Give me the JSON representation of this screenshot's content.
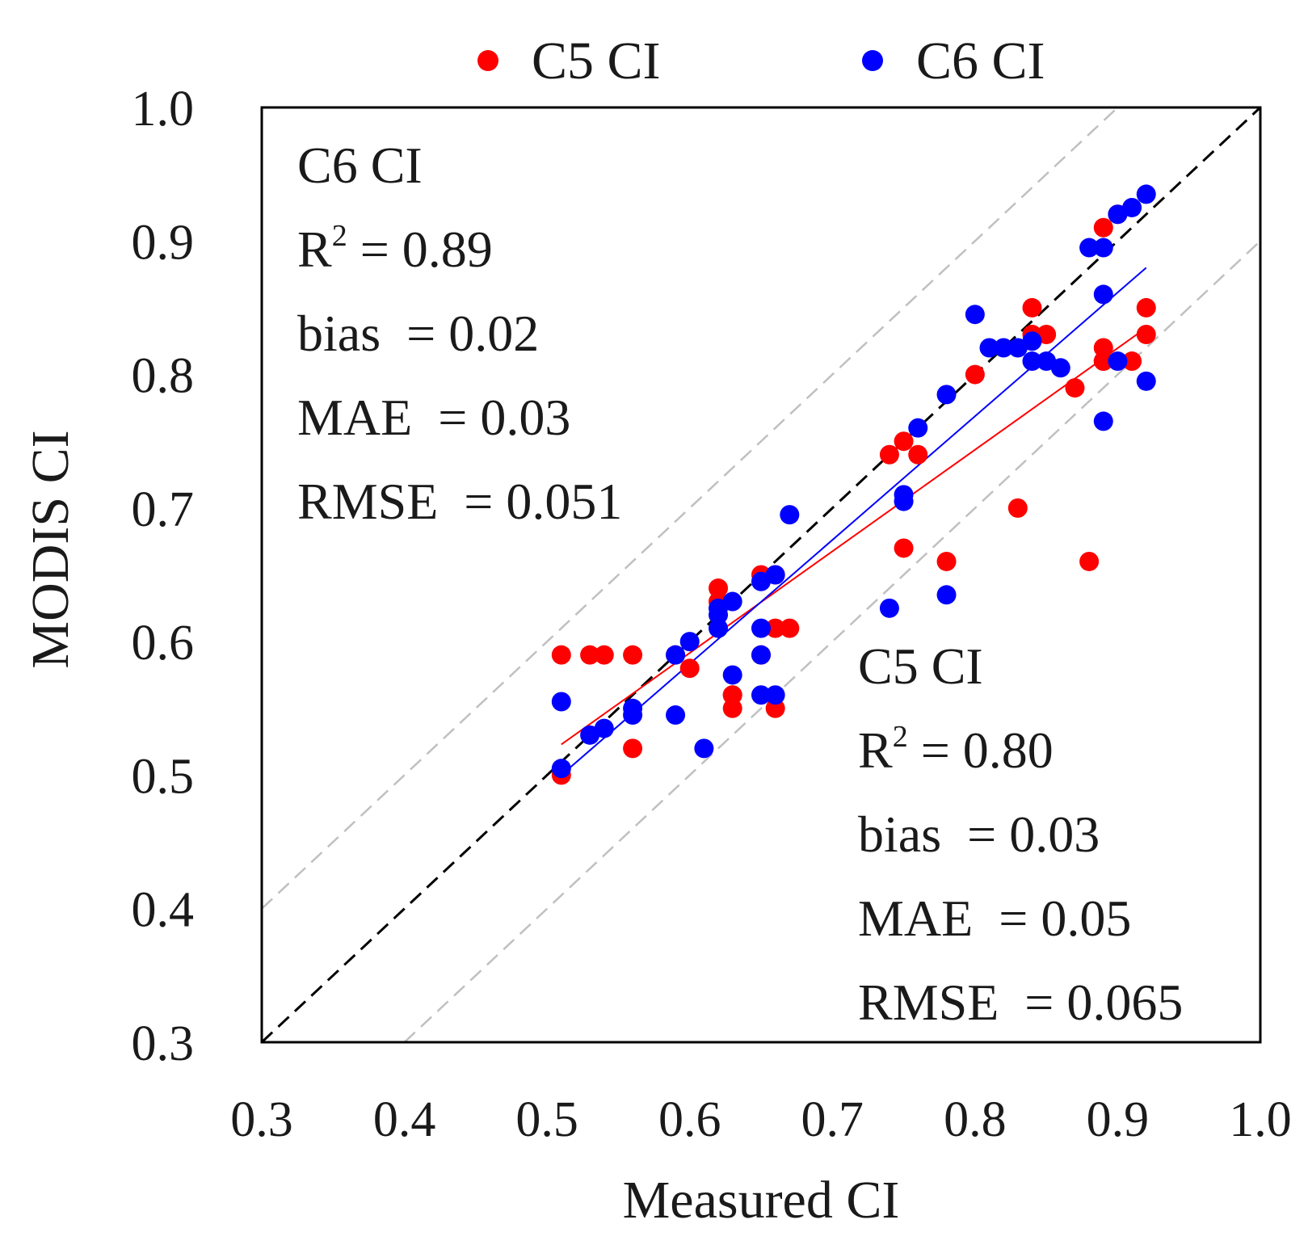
{
  "chart_data": {
    "type": "scatter",
    "xlabel": "Measured CI",
    "ylabel": "MODIS CI",
    "xlim": [
      0.3,
      1.0
    ],
    "ylim": [
      0.3,
      1.0
    ],
    "xticks": [
      "0.3",
      "0.4",
      "0.5",
      "0.6",
      "0.7",
      "0.8",
      "0.9",
      "1.0"
    ],
    "yticks": [
      "0.3",
      "0.4",
      "0.5",
      "0.6",
      "0.7",
      "0.8",
      "0.9",
      "1.0"
    ],
    "legend": [
      "C5 CI",
      "C6 CI"
    ],
    "colors": {
      "C5 CI": "#ff0000",
      "C6 CI": "#0000ff",
      "one_to_one": "#000000",
      "bounds": "#c0c0c0"
    },
    "reference_lines": {
      "one_to_one": [
        [
          0.3,
          0.3
        ],
        [
          1.0,
          1.0
        ]
      ],
      "upper_bound": [
        [
          0.3,
          0.4
        ],
        [
          0.9,
          1.0
        ]
      ],
      "lower_bound": [
        [
          0.4,
          0.3
        ],
        [
          1.0,
          0.9
        ]
      ]
    },
    "series": [
      {
        "name": "C5 CI",
        "fit": [
          [
            0.51,
            0.523
          ],
          [
            0.92,
            0.835
          ]
        ],
        "x": [
          0.51,
          0.51,
          0.53,
          0.54,
          0.56,
          0.56,
          0.59,
          0.6,
          0.62,
          0.62,
          0.63,
          0.63,
          0.63,
          0.65,
          0.65,
          0.66,
          0.66,
          0.66,
          0.67,
          0.74,
          0.75,
          0.75,
          0.76,
          0.78,
          0.8,
          0.83,
          0.84,
          0.84,
          0.85,
          0.87,
          0.88,
          0.89,
          0.89,
          0.89,
          0.89,
          0.9,
          0.91,
          0.92,
          0.92
        ],
        "y": [
          0.59,
          0.5,
          0.59,
          0.59,
          0.59,
          0.52,
          0.59,
          0.58,
          0.63,
          0.64,
          0.56,
          0.56,
          0.55,
          0.65,
          0.59,
          0.61,
          0.55,
          0.65,
          0.61,
          0.74,
          0.75,
          0.67,
          0.74,
          0.66,
          0.8,
          0.7,
          0.85,
          0.83,
          0.83,
          0.79,
          0.66,
          0.82,
          0.81,
          0.81,
          0.91,
          0.92,
          0.81,
          0.83,
          0.85
        ]
      },
      {
        "name": "C6 CI",
        "fit": [
          [
            0.51,
            0.5
          ],
          [
            0.92,
            0.88
          ]
        ],
        "x": [
          0.51,
          0.51,
          0.53,
          0.54,
          0.56,
          0.56,
          0.59,
          0.59,
          0.6,
          0.61,
          0.62,
          0.62,
          0.62,
          0.63,
          0.63,
          0.65,
          0.65,
          0.65,
          0.65,
          0.66,
          0.66,
          0.67,
          0.74,
          0.75,
          0.75,
          0.76,
          0.78,
          0.78,
          0.8,
          0.81,
          0.82,
          0.83,
          0.84,
          0.84,
          0.85,
          0.86,
          0.88,
          0.89,
          0.89,
          0.89,
          0.9,
          0.9,
          0.91,
          0.92,
          0.92
        ],
        "y": [
          0.555,
          0.505,
          0.53,
          0.535,
          0.55,
          0.545,
          0.545,
          0.59,
          0.6,
          0.52,
          0.62,
          0.61,
          0.625,
          0.63,
          0.575,
          0.645,
          0.61,
          0.59,
          0.56,
          0.65,
          0.56,
          0.695,
          0.625,
          0.705,
          0.71,
          0.76,
          0.785,
          0.635,
          0.845,
          0.82,
          0.82,
          0.82,
          0.81,
          0.825,
          0.81,
          0.805,
          0.895,
          0.86,
          0.765,
          0.895,
          0.92,
          0.81,
          0.925,
          0.795,
          0.935
        ]
      }
    ]
  },
  "stats": {
    "c6": {
      "title": "C6 CI",
      "r2_label": "R",
      "r2_sup": "2",
      "r2_value": " = 0.89",
      "bias": "bias  = 0.02",
      "mae": "MAE  = 0.03",
      "rmse": "RMSE  = 0.051"
    },
    "c5": {
      "title": "C5 CI",
      "r2_label": "R",
      "r2_sup": "2",
      "r2_value": " = 0.80",
      "bias": "bias  = 0.03",
      "mae": "MAE  = 0.05",
      "rmse": "RMSE  = 0.065"
    }
  }
}
